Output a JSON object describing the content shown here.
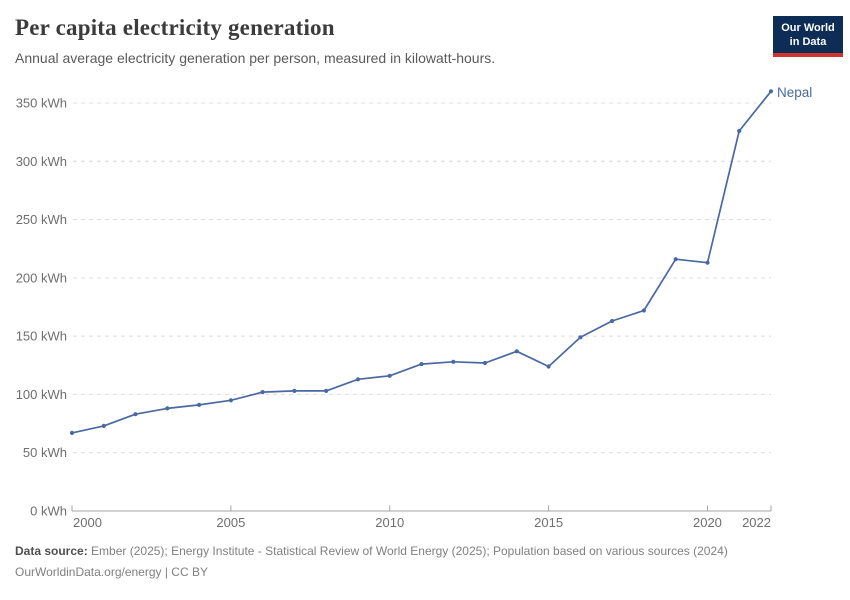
{
  "header": {
    "title": "Per capita electricity generation",
    "subtitle": "Annual average electricity generation per person, measured in kilowatt-hours.",
    "logo": {
      "line1": "Our World",
      "line2": "in Data",
      "bg_color": "#0d2d57",
      "accent_color": "#d0342c"
    }
  },
  "chart_data": {
    "type": "line",
    "title": "Per capita electricity generation",
    "subtitle": "Annual average electricity generation per person, measured in kilowatt-hours.",
    "unit": "kWh",
    "x": [
      2000,
      2001,
      2002,
      2003,
      2004,
      2005,
      2006,
      2007,
      2008,
      2009,
      2010,
      2011,
      2012,
      2013,
      2014,
      2015,
      2016,
      2017,
      2018,
      2019,
      2020,
      2021,
      2022
    ],
    "series": [
      {
        "name": "Nepal",
        "color": "#4a69a2",
        "values": [
          67,
          73,
          83,
          88,
          91,
          95,
          102,
          103,
          103,
          113,
          116,
          126,
          128,
          127,
          137,
          124,
          149,
          163,
          172,
          216,
          213,
          326,
          360
        ]
      }
    ],
    "entity_label": "Nepal",
    "xlim": [
      2000,
      2022
    ],
    "ylim": [
      0,
      360
    ],
    "x_ticks": [
      2000,
      2005,
      2010,
      2015,
      2020,
      2022
    ],
    "x_tick_labels": [
      "2000",
      "2005",
      "2010",
      "2015",
      "2020",
      "2022"
    ],
    "y_ticks": [
      0,
      50,
      100,
      150,
      200,
      250,
      300,
      350
    ],
    "y_tick_labels": [
      "0 kWh",
      "50 kWh",
      "100 kWh",
      "150 kWh",
      "200 kWh",
      "250 kWh",
      "300 kWh",
      "350 kWh"
    ],
    "grid": "horizontal-dashed",
    "legend_position": "line-end-label",
    "colors": {
      "gridline": "#dcdcdc",
      "axis": "#a3a3a3",
      "tick_label": "#6e6e6e"
    }
  },
  "footer": {
    "source_label": "Data source:",
    "source_text": "Ember (2025); Energy Institute - Statistical Review of World Energy (2025); Population based on various sources (2024)",
    "link_line": "OurWorldinData.org/energy | CC BY"
  }
}
